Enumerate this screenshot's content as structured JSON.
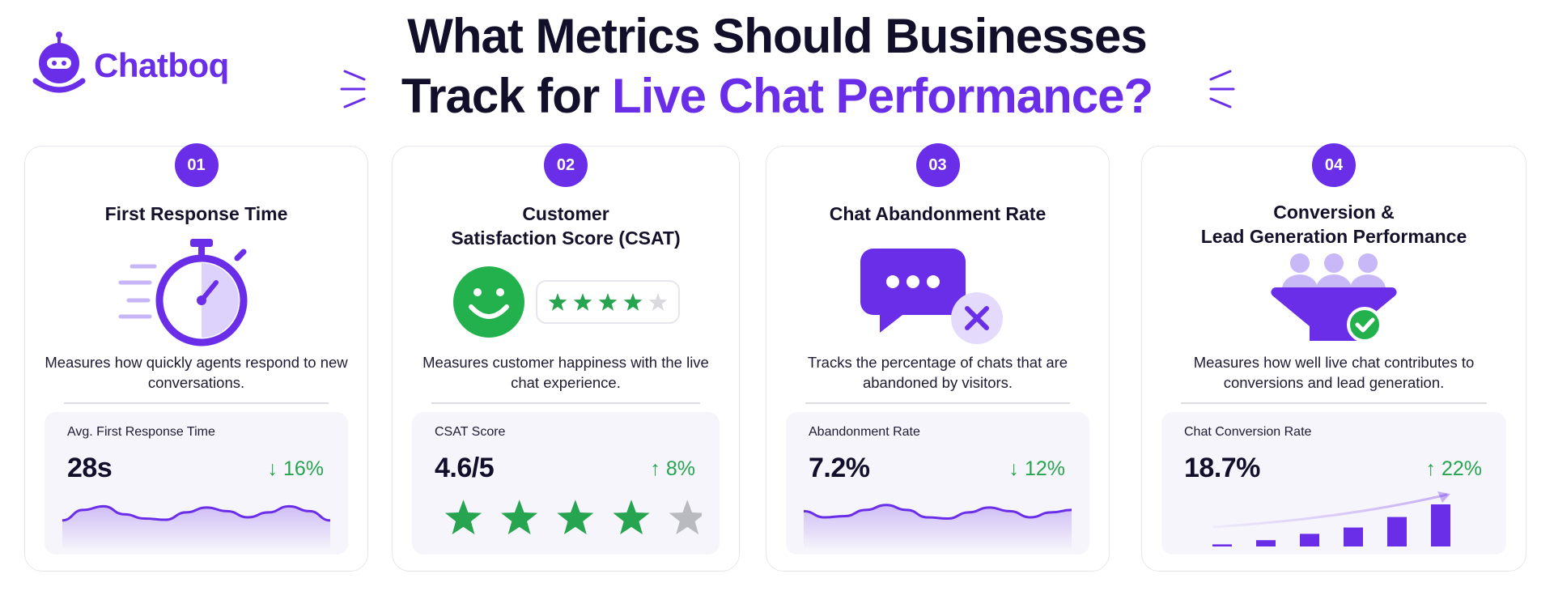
{
  "brand": {
    "name": "Chatboq",
    "icon": "robot-icon"
  },
  "headline": {
    "line1": "What Metrics Should Businesses",
    "line2_plain": "Track for ",
    "line2_accent": "Live Chat Performance?"
  },
  "colors": {
    "accent": "#6b2ee8",
    "positive": "#27a44f",
    "star_inactive": "#b9b9c0"
  },
  "cards": [
    {
      "number": "01",
      "title": "First Response Time",
      "icon": "stopwatch-icon",
      "description": "Measures how quickly agents respond to new conversations.",
      "metric_label": "Avg. First Response Time",
      "metric_value": "28s",
      "trend": "↓ 16%",
      "trend_direction": "down",
      "sparkline": [
        0.45,
        0.62,
        0.68,
        0.55,
        0.48,
        0.46,
        0.58,
        0.66,
        0.6,
        0.5,
        0.58,
        0.68,
        0.6,
        0.45
      ]
    },
    {
      "number": "02",
      "title": "Customer\nSatisfaction Score (CSAT)",
      "icon": "smiley-face-icon",
      "illustration_rating": 4,
      "description": "Measures customer happiness with the live chat experience.",
      "metric_label": "CSAT Score",
      "metric_value": "4.6/5",
      "trend": "↑ 8%",
      "trend_direction": "up",
      "stars_filled": 4,
      "stars_total": 5
    },
    {
      "number": "03",
      "title": "Chat Abandonment Rate",
      "icon": "chat-bubble-cancel-icon",
      "description": "Tracks the percentage of chats that are abandoned by visitors.",
      "metric_label": "Abandonment Rate",
      "metric_value": "7.2%",
      "trend": "↓ 12%",
      "trend_direction": "down",
      "sparkline": [
        0.6,
        0.5,
        0.52,
        0.62,
        0.7,
        0.62,
        0.5,
        0.48,
        0.58,
        0.66,
        0.6,
        0.5,
        0.58,
        0.62
      ]
    },
    {
      "number": "04",
      "title": "Conversion &\nLead Generation Performance",
      "icon": "funnel-check-icon",
      "description": "Measures how well live chat contributes to conversions and lead generation.",
      "metric_label": "Chat Conversion Rate",
      "metric_value": "18.7%",
      "trend": "↑ 22%",
      "trend_direction": "up",
      "bars": [
        1,
        3,
        6,
        9,
        14,
        20
      ]
    }
  ]
}
